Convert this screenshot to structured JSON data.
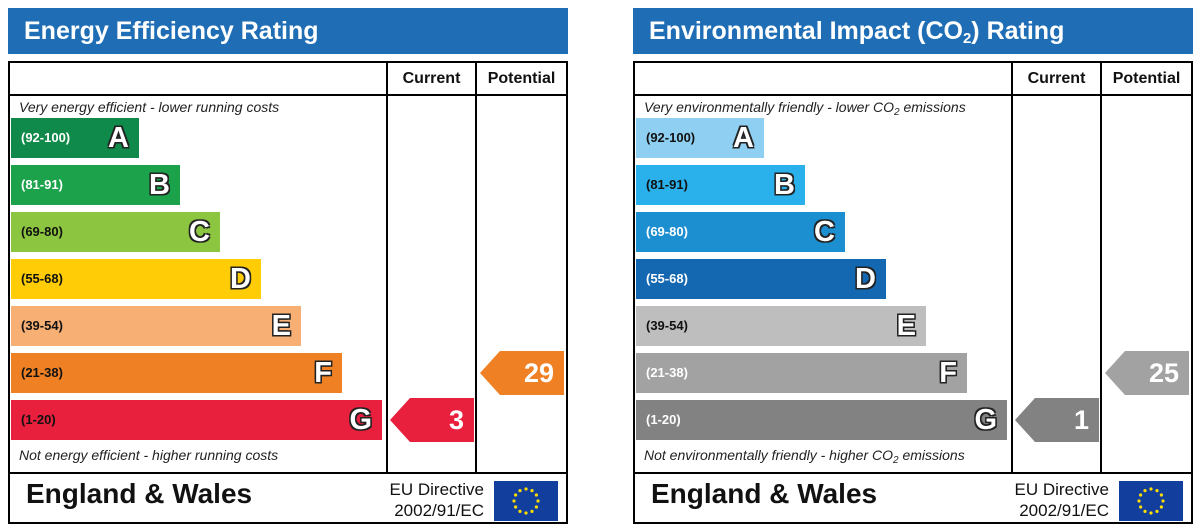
{
  "chart_data": [
    {
      "type": "bar",
      "title": "Energy Efficiency Rating",
      "columns": [
        "Current",
        "Potential"
      ],
      "top_note": "Very energy efficient - lower running costs",
      "bottom_note": "Not energy efficient - higher running costs",
      "bands": [
        {
          "range": "(92-100)",
          "letter": "A",
          "color": "#0f8a4a"
        },
        {
          "range": "(81-91)",
          "letter": "B",
          "color": "#1ba24b"
        },
        {
          "range": "(69-80)",
          "letter": "C",
          "color": "#8cc540"
        },
        {
          "range": "(55-68)",
          "letter": "D",
          "color": "#ffcc06"
        },
        {
          "range": "(39-54)",
          "letter": "E",
          "color": "#f7af74"
        },
        {
          "range": "(21-38)",
          "letter": "F",
          "color": "#ef8124"
        },
        {
          "range": "(1-20)",
          "letter": "G",
          "color": "#e8203e"
        }
      ],
      "current": {
        "value": "3",
        "band": "G",
        "color": "#e8203e"
      },
      "potential": {
        "value": "29",
        "band": "F",
        "color": "#ef8124"
      },
      "region": "England & Wales",
      "directive_line1": "EU Directive",
      "directive_line2": "2002/91/EC"
    },
    {
      "type": "bar",
      "title_part1": "Environmental Impact (CO",
      "title_sub": "2",
      "title_part2": ") Rating",
      "columns": [
        "Current",
        "Potential"
      ],
      "top_note_part1": "Very environmentally friendly - lower CO",
      "top_note_sub": "2",
      "top_note_part2": " emissions",
      "bottom_note_part1": "Not environmentally friendly - higher CO",
      "bottom_note_sub": "2",
      "bottom_note_part2": " emissions",
      "bands": [
        {
          "range": "(92-100)",
          "letter": "A",
          "color": "#8fd0f2"
        },
        {
          "range": "(81-91)",
          "letter": "B",
          "color": "#2ab0ea"
        },
        {
          "range": "(69-80)",
          "letter": "C",
          "color": "#1b8fd0"
        },
        {
          "range": "(55-68)",
          "letter": "D",
          "color": "#1468b1"
        },
        {
          "range": "(39-54)",
          "letter": "E",
          "color": "#bebebe"
        },
        {
          "range": "(21-38)",
          "letter": "F",
          "color": "#a2a2a2"
        },
        {
          "range": "(1-20)",
          "letter": "G",
          "color": "#828282"
        }
      ],
      "current": {
        "value": "1",
        "band": "G",
        "color": "#828282"
      },
      "potential": {
        "value": "25",
        "band": "F",
        "color": "#a2a2a2"
      },
      "region": "England & Wales",
      "directive_line1": "EU Directive",
      "directive_line2": "2002/91/EC"
    }
  ],
  "icons": {
    "flag": "eu-flag-icon"
  }
}
